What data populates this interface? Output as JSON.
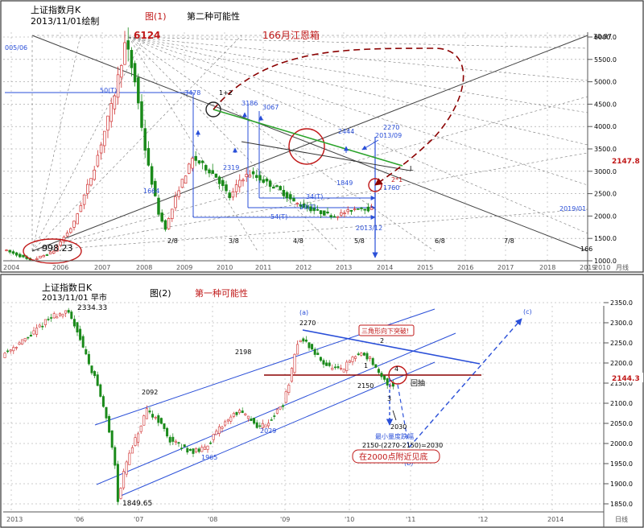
{
  "colors": {
    "up": "#d03030",
    "down": "#1a8a1a",
    "blue": "#2a4fd8",
    "red": "#c01818",
    "darkred": "#8b0000",
    "green": "#2aa32a",
    "grid": "#9a9a9a"
  },
  "top_chart": {
    "title_line1": "上证指数月K",
    "title_line2": "2013/11/01绘制",
    "fig_label": "图(1)",
    "subtitle": "第二种可能性",
    "box_label": "166月江恩箱",
    "peak_label": "6124",
    "low_label": "998.23",
    "left_note": "005/06",
    "right_top_label": "30.87",
    "last_price": "2147.8",
    "end_label": "166",
    "date_label": "2019/01",
    "date_label2": "2013/12",
    "ann": {
      "a3478": "3478",
      "a12": "1+2",
      "a3186": "3186",
      "a3067": "3067",
      "a2444": "2444",
      "a2270": "2270",
      "a201309": "2013/09",
      "a2319": "2319",
      "a1664": "1664",
      "a1849": "1849",
      "a1760": "1760",
      "a21": "2*1",
      "aL": "L",
      "a50T": "50(T)",
      "a34T": "34(T)",
      "a39T": "39(T)",
      "a54T": "54(T)"
    },
    "fractions": [
      "2/8",
      "3/8",
      "4/8",
      "5/8",
      "6/8",
      "7/8"
    ],
    "x_years": [
      "2004",
      "2006",
      "2007",
      "2008",
      "2009",
      "2010",
      "2011",
      "2012",
      "2013",
      "2014",
      "2015",
      "2016",
      "2017",
      "2018",
      "2019",
      "2010"
    ],
    "x_unit": "月线",
    "y_ticks": [
      "6000.0",
      "5500.0",
      "5000.0",
      "4500.0",
      "4000.0",
      "3500.0",
      "3000.0",
      "2500.0",
      "2000.0",
      "1500.0",
      "1000.0"
    ]
  },
  "bottom_chart": {
    "title_line1": "上证指数日K",
    "title_line2": "2013/11/01 早市",
    "fig_label": "图(2)",
    "subtitle": "第一种可能性",
    "peak_label": "2334.33",
    "low_label": "1849.65",
    "last_price": "2144.3",
    "ann": {
      "a2270": "2270",
      "a2198": "2198",
      "a2092": "2092",
      "a2029": "2029",
      "a1965": "1965",
      "a2150": "2150",
      "a2030": "2030",
      "wa": "(a)",
      "wb": "(b)",
      "wc": "(c)",
      "w1": "1",
      "w2": "2",
      "w3": "3",
      "w4": "4",
      "pullback": "回抽",
      "triangle_break": "三角形向下突破!",
      "min_drop": "最小量度跌幅",
      "formula": "2150-(2270-2150)=2030",
      "bottom_note": "在2000点附近见底"
    },
    "x_labels": [
      "2013",
      "'06",
      "'07",
      "'08",
      "'09",
      "'10",
      "'11",
      "'12",
      "2014"
    ],
    "x_unit": "日线",
    "y_ticks": [
      "2350.0",
      "2300.0",
      "2250.0",
      "2200.0",
      "2150.0",
      "2100.0",
      "2050.0",
      "2000.0",
      "1950.0",
      "1900.0",
      "1850.0"
    ]
  },
  "chart_data": [
    {
      "type": "candlestick",
      "title": "上证指数月K",
      "subtitle": "第二种可能性",
      "x_range": [
        "2004",
        "2019"
      ],
      "y_range": [
        1000,
        6000
      ],
      "key_points": [
        {
          "label": "998.23",
          "date": "2005",
          "value": 998.23
        },
        {
          "label": "6124",
          "date": "2007",
          "value": 6124
        },
        {
          "label": "1664",
          "date": "2008",
          "value": 1664
        },
        {
          "label": "3478",
          "date": "2009",
          "value": 3478
        },
        {
          "label": "2319",
          "date": "2010",
          "value": 2319
        },
        {
          "label": "3186",
          "date": "2010",
          "value": 3186
        },
        {
          "label": "3067",
          "date": "2011",
          "value": 3067
        },
        {
          "label": "2444",
          "date": "2012",
          "value": 2444
        },
        {
          "label": "1849",
          "date": "2013",
          "value": 1849
        },
        {
          "label": "2270",
          "date": "2013/09",
          "value": 2270
        },
        {
          "label": "1760",
          "date": "2013/12",
          "value": 1760
        },
        {
          "label": "last",
          "date": "2013/11",
          "value": 2147.8
        }
      ]
    },
    {
      "type": "candlestick",
      "title": "上证指数日K",
      "subtitle": "第一种可能性",
      "y_range": [
        1850,
        2350
      ],
      "key_points": [
        {
          "label": "2334.33",
          "value": 2334.33
        },
        {
          "label": "1849.65",
          "value": 1849.65
        },
        {
          "label": "2092",
          "value": 2092
        },
        {
          "label": "1965",
          "value": 1965
        },
        {
          "label": "2198",
          "value": 2198
        },
        {
          "label": "2029",
          "value": 2029
        },
        {
          "label": "2270",
          "value": 2270
        },
        {
          "label": "2150",
          "value": 2150
        },
        {
          "label": "2030",
          "value": 2030
        },
        {
          "label": "last",
          "value": 2144.3
        }
      ]
    }
  ]
}
